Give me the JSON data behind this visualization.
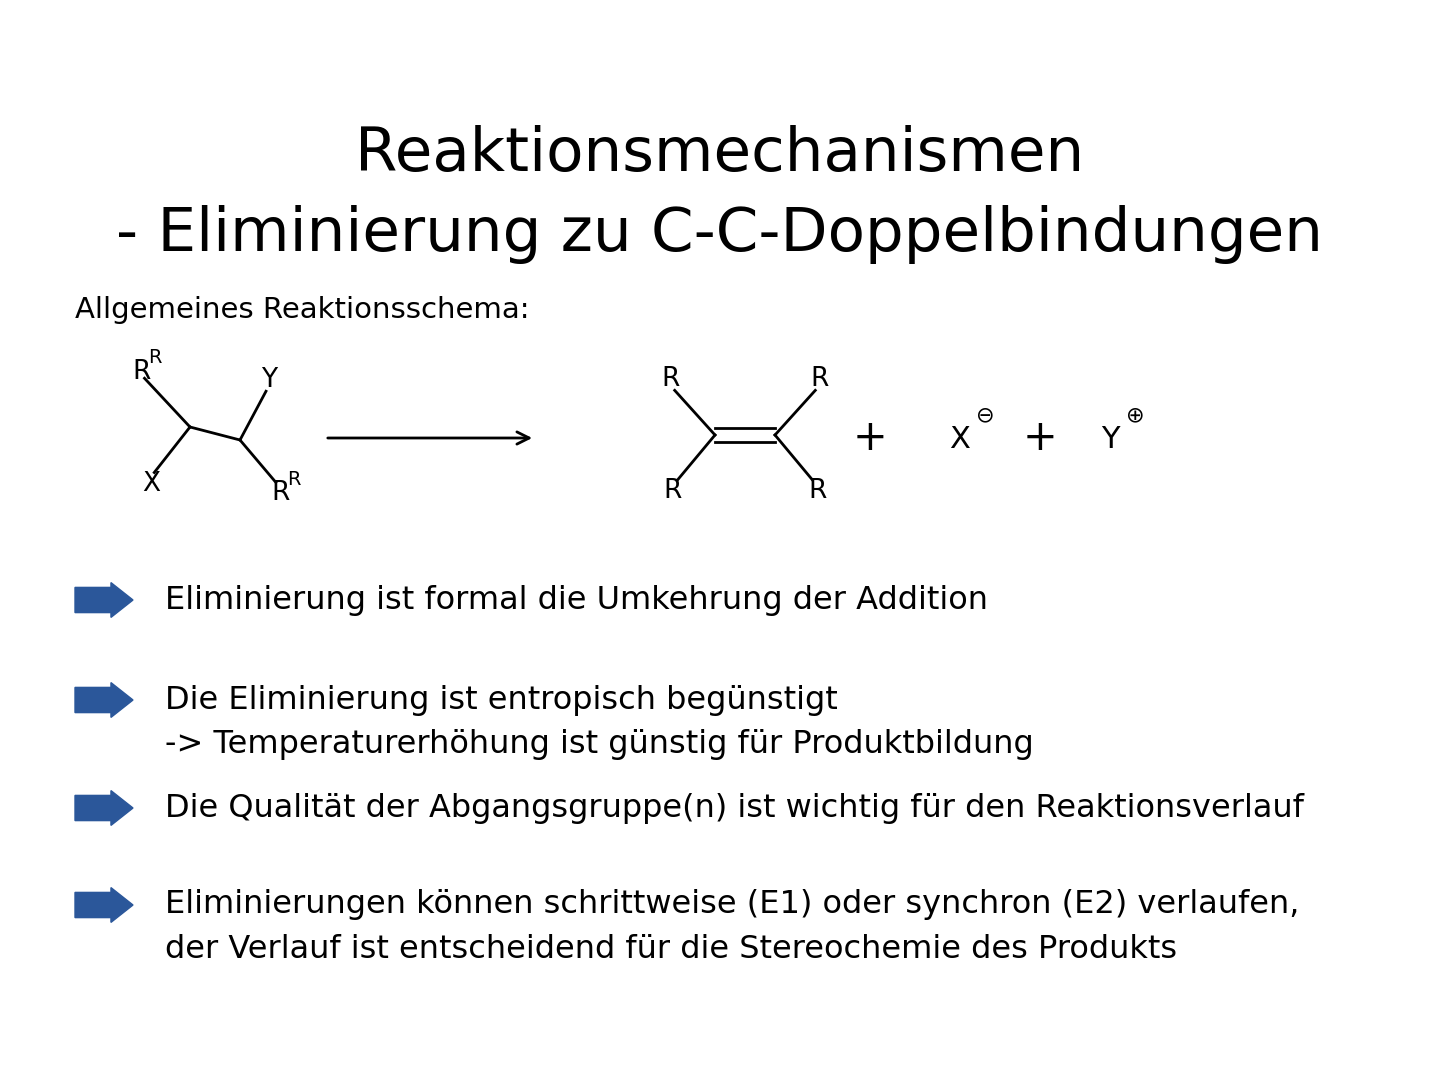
{
  "title_line1": "Reaktionsmechanismen",
  "title_line2": "- Eliminierung zu C-C-Doppelbindungen",
  "subtitle": "Allgemeines Reaktionsschema:",
  "bg_color": "#ffffff",
  "text_color": "#000000",
  "arrow_color": "#2B579A",
  "bullet_points": [
    "Eliminierung ist formal die Umkehrung der Addition",
    "Die Eliminierung ist entropisch begünstigt\n-> Temperaturerhöhung ist günstig für Produktbildung",
    "Die Qualität der Abgangsgruppe(n) ist wichtig für den Reaktionsverlauf",
    "Eliminierungen können schrittweise (E1) oder synchron (E2) verlaufen,\nder Verlauf ist entscheidend für die Stereochemie des Produkts"
  ],
  "title_fontsize": 44,
  "subtitle_fontsize": 21,
  "bullet_fontsize": 23,
  "chem_fontsize": 19,
  "chem_small_fontsize": 14
}
